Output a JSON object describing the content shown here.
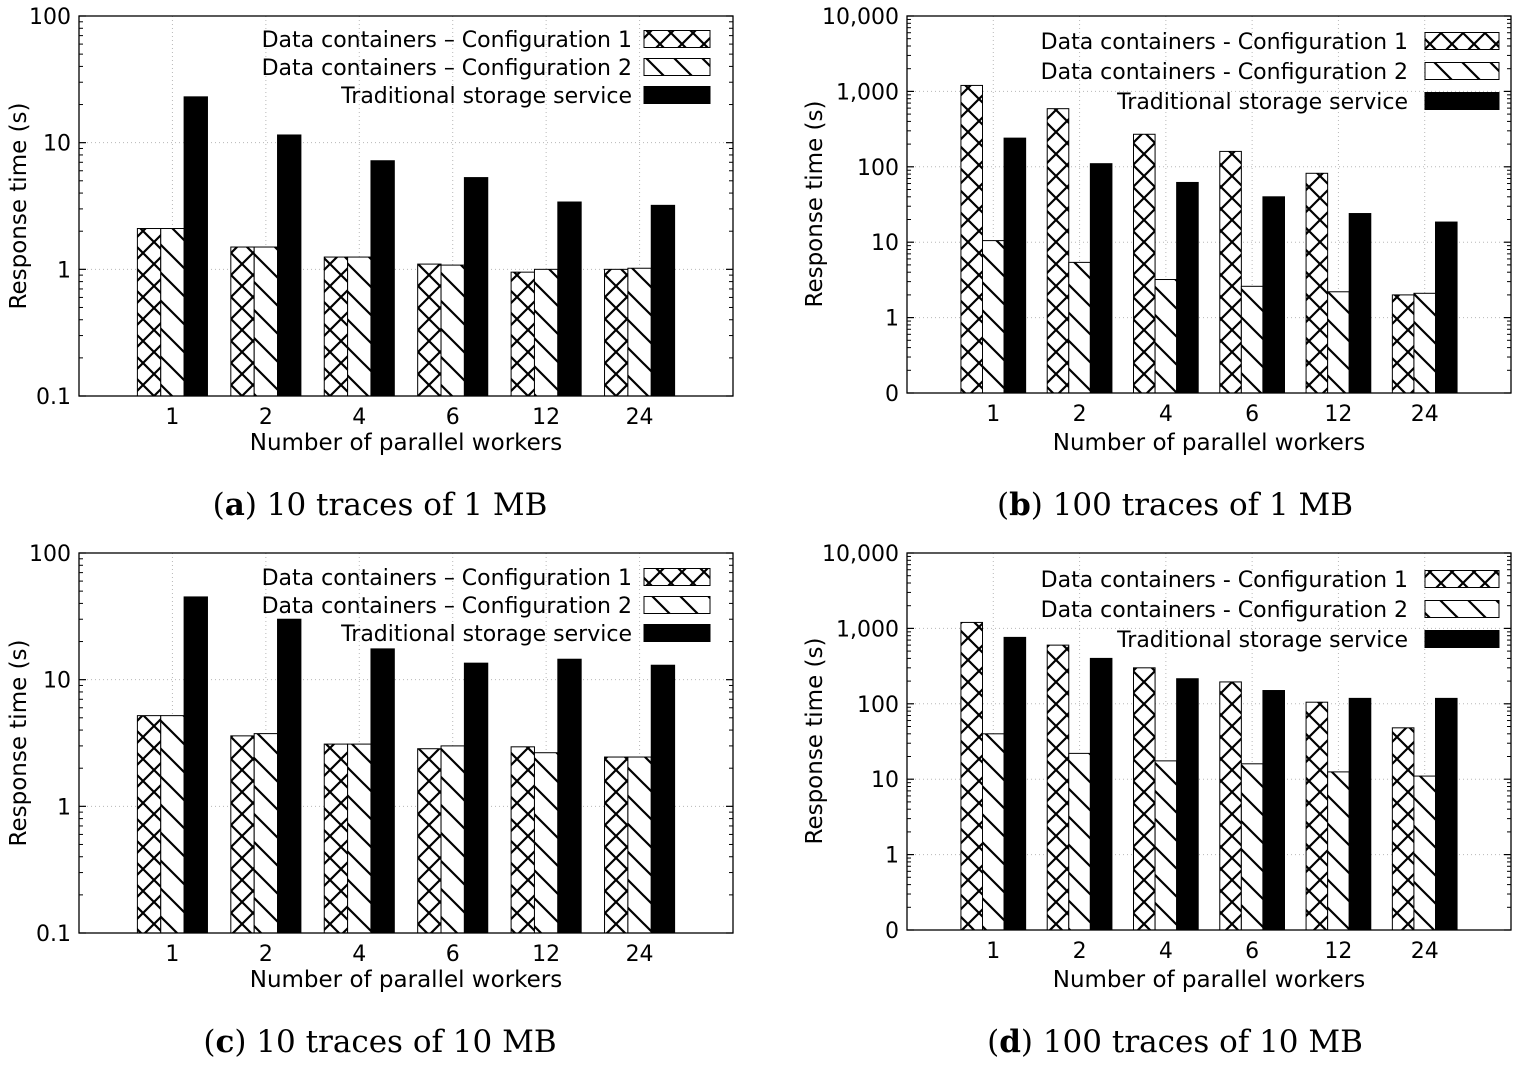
{
  "figure": {
    "series_names": [
      "Data containers – Configuration 1",
      "Data containers – Configuration 2",
      "Traditional storage service"
    ]
  },
  "chart_data": [
    {
      "type": "bar",
      "panel_letter": "a",
      "caption": "10 traces of 1 MB",
      "xlabel": "Number of parallel workers",
      "ylabel": "Response time (s)",
      "yscale": "log",
      "ylim": [
        0.1,
        100
      ],
      "yticks": [
        0.1,
        1,
        10,
        100
      ],
      "ytick_labels": [
        "0.1",
        "1",
        "10",
        "100"
      ],
      "grid": true,
      "legend_position": "top-right",
      "categories": [
        "1",
        "2",
        "4",
        "6",
        "12",
        "24"
      ],
      "series": [
        {
          "name": "Data containers – Configuration 1",
          "pattern": "crosshatch",
          "values": [
            2.1,
            1.5,
            1.25,
            1.1,
            0.95,
            1.0
          ]
        },
        {
          "name": "Data containers – Configuration 2",
          "pattern": "diagonal",
          "values": [
            2.1,
            1.5,
            1.25,
            1.08,
            1.0,
            1.02
          ]
        },
        {
          "name": "Traditional storage service",
          "pattern": "solid",
          "values": [
            23,
            11.5,
            7.2,
            5.3,
            3.4,
            3.2
          ]
        }
      ]
    },
    {
      "type": "bar",
      "panel_letter": "b",
      "caption": "100 traces of 1 MB",
      "xlabel": "Number of parallel workers",
      "ylabel": "Response time (s)",
      "yscale": "log",
      "ylim": [
        0.1,
        10000
      ],
      "yticks": [
        0.1,
        1,
        10,
        100,
        1000,
        10000
      ],
      "ytick_labels": [
        "0",
        "1",
        "10",
        "100",
        "1,000",
        "10,000"
      ],
      "grid": true,
      "legend_position": "top-right",
      "categories": [
        "1",
        "2",
        "4",
        "6",
        "12",
        "24"
      ],
      "series": [
        {
          "name": "Data containers - Configuration 1",
          "pattern": "crosshatch",
          "values": [
            1200,
            590,
            270,
            160,
            82,
            2.0
          ]
        },
        {
          "name": "Data containers - Configuration 2",
          "pattern": "diagonal",
          "values": [
            10.5,
            5.4,
            3.2,
            2.6,
            2.2,
            2.1
          ]
        },
        {
          "name": "Traditional storage service",
          "pattern": "solid",
          "values": [
            240,
            110,
            62,
            40,
            24,
            18.5
          ]
        }
      ]
    },
    {
      "type": "bar",
      "panel_letter": "c",
      "caption": "10 traces of 10 MB",
      "xlabel": "Number of parallel workers",
      "ylabel": "Response time (s)",
      "yscale": "log",
      "ylim": [
        0.1,
        100
      ],
      "yticks": [
        0.1,
        1,
        10,
        100
      ],
      "ytick_labels": [
        "0.1",
        "1",
        "10",
        "100"
      ],
      "grid": true,
      "legend_position": "top-right",
      "categories": [
        "1",
        "2",
        "4",
        "6",
        "12",
        "24"
      ],
      "series": [
        {
          "name": "Data containers – Configuration 1",
          "pattern": "crosshatch",
          "values": [
            5.2,
            3.6,
            3.1,
            2.85,
            2.95,
            2.45
          ]
        },
        {
          "name": "Data containers – Configuration 2",
          "pattern": "diagonal",
          "values": [
            5.2,
            3.75,
            3.1,
            3.0,
            2.65,
            2.45
          ]
        },
        {
          "name": "Traditional storage service",
          "pattern": "solid",
          "values": [
            45,
            30,
            17.5,
            13.5,
            14.5,
            13
          ]
        }
      ]
    },
    {
      "type": "bar",
      "panel_letter": "d",
      "caption": "100 traces of 10 MB",
      "xlabel": "Number of parallel workers",
      "ylabel": "Response time (s)",
      "yscale": "log",
      "ylim": [
        0.1,
        10000
      ],
      "yticks": [
        0.1,
        1,
        10,
        100,
        1000,
        10000
      ],
      "ytick_labels": [
        "0",
        "1",
        "10",
        "100",
        "1,000",
        "10,000"
      ],
      "grid": true,
      "legend_position": "top-right",
      "categories": [
        "1",
        "2",
        "4",
        "6",
        "12",
        "24"
      ],
      "series": [
        {
          "name": "Data containers - Configuration 1",
          "pattern": "crosshatch",
          "values": [
            1200,
            600,
            300,
            195,
            105,
            48
          ]
        },
        {
          "name": "Data containers - Configuration 2",
          "pattern": "diagonal",
          "values": [
            40,
            22,
            17.5,
            16,
            12.5,
            11
          ]
        },
        {
          "name": "Traditional storage service",
          "pattern": "solid",
          "values": [
            760,
            400,
            215,
            150,
            118,
            118
          ]
        }
      ]
    }
  ]
}
